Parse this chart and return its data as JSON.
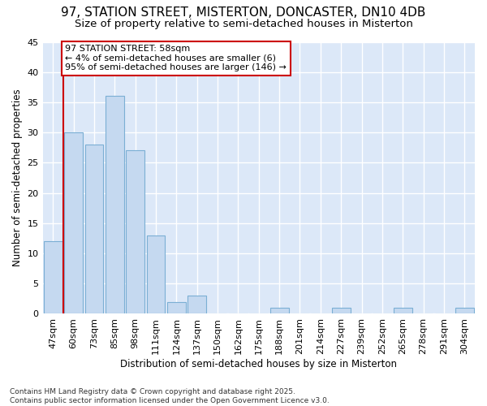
{
  "title": "97, STATION STREET, MISTERTON, DONCASTER, DN10 4DB",
  "subtitle": "Size of property relative to semi-detached houses in Misterton",
  "xlabel": "Distribution of semi-detached houses by size in Misterton",
  "ylabel": "Number of semi-detached properties",
  "categories": [
    "47sqm",
    "60sqm",
    "73sqm",
    "85sqm",
    "98sqm",
    "111sqm",
    "124sqm",
    "137sqm",
    "150sqm",
    "162sqm",
    "175sqm",
    "188sqm",
    "201sqm",
    "214sqm",
    "227sqm",
    "239sqm",
    "252sqm",
    "265sqm",
    "278sqm",
    "291sqm",
    "304sqm"
  ],
  "values": [
    12,
    30,
    28,
    36,
    27,
    13,
    2,
    3,
    0,
    0,
    0,
    1,
    0,
    0,
    1,
    0,
    0,
    1,
    0,
    0,
    1
  ],
  "bar_color": "#c5d9f0",
  "bar_edge_color": "#7bafd4",
  "red_line_x": 0.5,
  "annotation_text": "97 STATION STREET: 58sqm\n← 4% of semi-detached houses are smaller (6)\n95% of semi-detached houses are larger (146) →",
  "annotation_box_color": "#ffffff",
  "annotation_box_edge_color": "#cc0000",
  "ylim": [
    0,
    45
  ],
  "yticks": [
    0,
    5,
    10,
    15,
    20,
    25,
    30,
    35,
    40,
    45
  ],
  "footer": "Contains HM Land Registry data © Crown copyright and database right 2025.\nContains public sector information licensed under the Open Government Licence v3.0.",
  "bg_color": "#ffffff",
  "plot_bg_color": "#dce8f8",
  "grid_color": "#ffffff",
  "title_fontsize": 11,
  "subtitle_fontsize": 9.5,
  "tick_fontsize": 8,
  "ylabel_fontsize": 8.5,
  "xlabel_fontsize": 8.5,
  "footer_fontsize": 6.5,
  "annotation_fontsize": 8
}
